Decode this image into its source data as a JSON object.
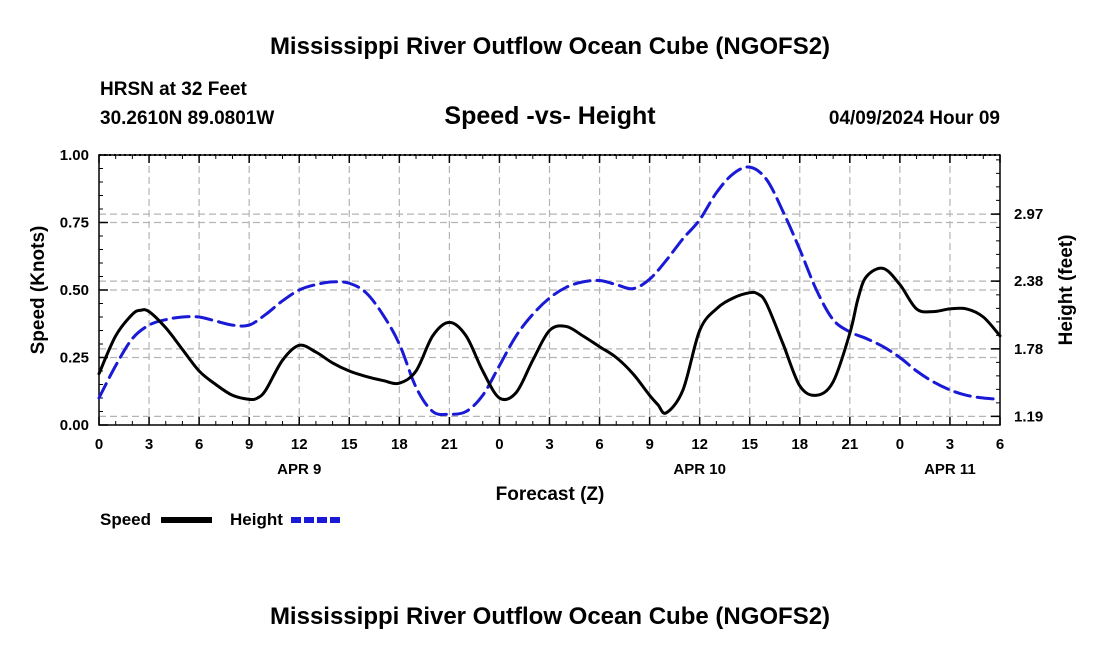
{
  "header": {
    "title": "Mississippi River Outflow Ocean Cube (NGOFS2)",
    "station": "HRSN at 32 Feet",
    "coords": "30.2610N  89.0801W",
    "subtitle": "Speed -vs- Height",
    "datetime": "04/09/2024 Hour 09"
  },
  "footer": {
    "title": "Mississippi River Outflow Ocean Cube (NGOFS2)"
  },
  "legend": {
    "speed_label": "Speed",
    "height_label": "Height"
  },
  "colors": {
    "speed": "#000000",
    "height": "#1a1ad6",
    "grid": "#b4b4b4"
  },
  "chart_data": {
    "type": "line",
    "title": "Speed -vs- Height",
    "xlabel": "Forecast (Z)",
    "ylabel": "Speed (Knots)",
    "y2label": "Height (feet)",
    "xlim": [
      0,
      54
    ],
    "ylim": [
      0,
      1
    ],
    "y_ticks": [
      "0.00",
      "0.25",
      "0.50",
      "0.75",
      "1.00"
    ],
    "y2_ticks": [
      {
        "label": "1.19",
        "value": 0.032
      },
      {
        "label": "1.78",
        "value": 0.282
      },
      {
        "label": "2.38",
        "value": 0.533
      },
      {
        "label": "2.97",
        "value": 0.781
      }
    ],
    "x_tick_labels": [
      "0",
      "3",
      "6",
      "9",
      "12",
      "15",
      "18",
      "21",
      "0",
      "3",
      "6",
      "9",
      "12",
      "15",
      "18",
      "21",
      "0",
      "3",
      "6"
    ],
    "date_labels": [
      {
        "label": "APR 9",
        "hour": 12
      },
      {
        "label": "APR 10",
        "hour": 36
      },
      {
        "label": "APR 11",
        "hour": 51
      }
    ],
    "series": [
      {
        "name": "Speed",
        "axis": "left",
        "x": [
          0,
          1,
          2,
          2.5,
          3,
          4,
          5,
          6,
          7,
          8,
          9,
          9.5,
          10,
          11,
          12,
          13,
          14,
          15,
          16,
          17,
          18,
          19,
          20,
          21,
          22,
          23,
          24,
          25,
          26,
          27,
          28,
          29,
          30,
          31,
          32,
          33,
          33.5,
          34,
          35,
          36,
          37,
          38,
          39,
          39.5,
          40,
          41,
          42,
          43,
          44,
          45,
          45.5,
          46,
          47,
          48,
          49,
          50,
          51,
          52,
          53,
          54
        ],
        "y": [
          0.19,
          0.33,
          0.41,
          0.425,
          0.42,
          0.36,
          0.28,
          0.2,
          0.15,
          0.11,
          0.095,
          0.1,
          0.13,
          0.24,
          0.295,
          0.27,
          0.23,
          0.2,
          0.18,
          0.165,
          0.155,
          0.2,
          0.33,
          0.38,
          0.33,
          0.2,
          0.1,
          0.12,
          0.24,
          0.35,
          0.365,
          0.33,
          0.29,
          0.25,
          0.19,
          0.11,
          0.075,
          0.045,
          0.13,
          0.35,
          0.43,
          0.47,
          0.49,
          0.485,
          0.45,
          0.3,
          0.145,
          0.11,
          0.16,
          0.34,
          0.47,
          0.55,
          0.58,
          0.52,
          0.43,
          0.42,
          0.43,
          0.43,
          0.4,
          0.33
        ]
      },
      {
        "name": "Height",
        "axis": "right",
        "x": [
          0,
          1,
          2,
          3,
          4,
          5,
          6,
          7,
          8,
          9,
          10,
          11,
          12,
          13,
          14,
          15,
          16,
          17,
          18,
          19,
          20,
          21,
          22,
          23,
          24,
          25,
          26,
          27,
          28,
          29,
          30,
          31,
          32,
          33,
          34,
          35,
          36,
          37,
          38,
          39,
          40,
          41,
          42,
          43,
          44,
          45,
          46,
          47,
          48,
          49,
          50,
          51,
          52,
          53,
          54
        ],
        "y": [
          0.1,
          0.22,
          0.32,
          0.37,
          0.39,
          0.4,
          0.4,
          0.385,
          0.37,
          0.37,
          0.41,
          0.46,
          0.5,
          0.52,
          0.53,
          0.525,
          0.49,
          0.41,
          0.3,
          0.14,
          0.05,
          0.04,
          0.05,
          0.11,
          0.22,
          0.33,
          0.41,
          0.47,
          0.51,
          0.53,
          0.535,
          0.52,
          0.505,
          0.54,
          0.61,
          0.69,
          0.76,
          0.86,
          0.93,
          0.955,
          0.91,
          0.79,
          0.65,
          0.5,
          0.39,
          0.345,
          0.32,
          0.29,
          0.25,
          0.2,
          0.16,
          0.13,
          0.11,
          0.1,
          0.095
        ]
      }
    ]
  }
}
